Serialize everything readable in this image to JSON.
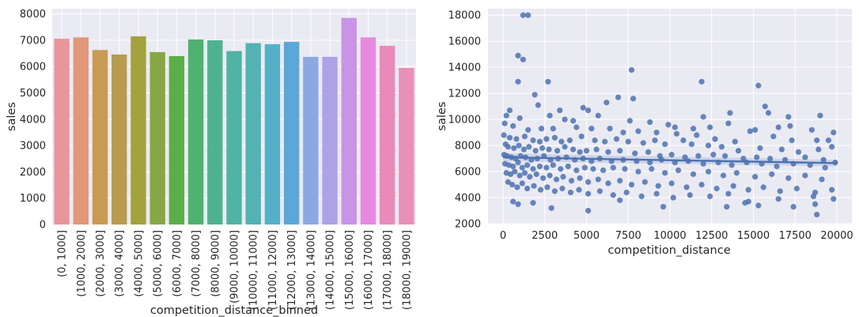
{
  "chart_data": [
    {
      "type": "bar",
      "xlabel": "competition_distance_binned",
      "ylabel": "sales",
      "ylim": [
        0,
        8200
      ],
      "yticks": [
        0,
        1000,
        2000,
        3000,
        4000,
        5000,
        6000,
        7000,
        8000
      ],
      "grid": true,
      "categories": [
        "(0, 1000]",
        "(1000, 2000]",
        "(2000, 3000]",
        "(3000, 4000]",
        "(4000, 5000]",
        "(5000, 6000]",
        "(6000, 7000]",
        "(7000, 8000]",
        "(8000, 9000]",
        "(9000, 10000]",
        "(10000, 11000]",
        "(11000, 12000]",
        "(12000, 13000]",
        "(13000, 14000]",
        "(14000, 15000]",
        "(15000, 16000]",
        "(16000, 17000]",
        "(17000, 18000]",
        "(18000, 19000]"
      ],
      "values": [
        7060,
        7110,
        6630,
        6460,
        7150,
        6550,
        6400,
        7030,
        7000,
        6590,
        6890,
        6850,
        6940,
        6370,
        6370,
        7850,
        7110,
        6790,
        5950
      ],
      "colors": [
        "#e8959b",
        "#e0987a",
        "#c99a54",
        "#b79c4e",
        "#a2a23f",
        "#87a745",
        "#5cae4a",
        "#4eb270",
        "#4fb28e",
        "#50b3a3",
        "#52b2b4",
        "#55b0c7",
        "#5ba8d8",
        "#8ca8e3",
        "#afa1e8",
        "#c993e6",
        "#e68ae0",
        "#e98ab9",
        "#e890b8"
      ]
    },
    {
      "type": "scatter",
      "xlabel": "competition_distance",
      "ylabel": "sales",
      "xlim": [
        -900,
        20900
      ],
      "ylim": [
        2000,
        18500
      ],
      "xticks": [
        0,
        2500,
        5000,
        7500,
        10000,
        12500,
        15000,
        17500,
        20000
      ],
      "yticks": [
        2000,
        4000,
        6000,
        8000,
        10000,
        12000,
        14000,
        16000,
        18000
      ],
      "grid": true,
      "regression": {
        "x": [
          0,
          20000
        ],
        "y": [
          7100,
          6650
        ]
      },
      "color": "#4c72b0",
      "points": [
        [
          1200,
          18000
        ],
        [
          1500,
          18000
        ],
        [
          900,
          14900
        ],
        [
          1200,
          14600
        ],
        [
          900,
          12900
        ],
        [
          2700,
          12900
        ],
        [
          7700,
          13800
        ],
        [
          11900,
          12900
        ],
        [
          15300,
          12600
        ],
        [
          15700,
          11000
        ],
        [
          6900,
          11700
        ],
        [
          6200,
          11300
        ],
        [
          7800,
          11600
        ],
        [
          2100,
          11100
        ],
        [
          1900,
          11900
        ],
        [
          4800,
          10900
        ],
        [
          5100,
          10700
        ],
        [
          3400,
          10700
        ],
        [
          400,
          10700
        ],
        [
          13600,
          10500
        ],
        [
          12000,
          10200
        ],
        [
          15900,
          10500
        ],
        [
          19000,
          10300
        ],
        [
          17100,
          10200
        ],
        [
          200,
          10300
        ],
        [
          1000,
          10100
        ],
        [
          2800,
          10300
        ],
        [
          3700,
          10000
        ],
        [
          4200,
          9900
        ],
        [
          5700,
          10300
        ],
        [
          7600,
          9900
        ],
        [
          8800,
          9800
        ],
        [
          9900,
          9600
        ],
        [
          10300,
          9400
        ],
        [
          11400,
          9300
        ],
        [
          12400,
          9400
        ],
        [
          13500,
          9700
        ],
        [
          14800,
          9100
        ],
        [
          15100,
          9200
        ],
        [
          16500,
          9400
        ],
        [
          17200,
          9500
        ],
        [
          18500,
          9200
        ],
        [
          19800,
          9000
        ],
        [
          100,
          9700
        ],
        [
          600,
          9500
        ],
        [
          1500,
          9200
        ],
        [
          2300,
          9300
        ],
        [
          3000,
          9300
        ],
        [
          4400,
          9400
        ],
        [
          5300,
          9300
        ],
        [
          6400,
          9300
        ],
        [
          7200,
          9000
        ],
        [
          8100,
          9100
        ],
        [
          9200,
          9000
        ],
        [
          10400,
          8900
        ],
        [
          11600,
          8800
        ],
        [
          12700,
          8500
        ],
        [
          13900,
          8300
        ],
        [
          16200,
          8700
        ],
        [
          17300,
          8400
        ],
        [
          18800,
          8400
        ],
        [
          19500,
          8400
        ],
        [
          50,
          8800
        ],
        [
          400,
          8600
        ],
        [
          800,
          8500
        ],
        [
          1300,
          8700
        ],
        [
          1800,
          8400
        ],
        [
          2200,
          8300
        ],
        [
          2600,
          8500
        ],
        [
          3100,
          8600
        ],
        [
          3500,
          8300
        ],
        [
          4000,
          8400
        ],
        [
          4700,
          8700
        ],
        [
          5500,
          8400
        ],
        [
          6100,
          8300
        ],
        [
          6800,
          8500
        ],
        [
          7500,
          8300
        ],
        [
          8400,
          8200
        ],
        [
          9100,
          8400
        ],
        [
          9700,
          8100
        ],
        [
          10800,
          8400
        ],
        [
          11300,
          8100
        ],
        [
          12300,
          8000
        ],
        [
          13100,
          7900
        ],
        [
          14100,
          7600
        ],
        [
          15400,
          7800
        ],
        [
          16700,
          7700
        ],
        [
          17700,
          7500
        ],
        [
          18900,
          7700
        ],
        [
          19700,
          7900
        ],
        [
          150,
          8100
        ],
        [
          300,
          7900
        ],
        [
          650,
          7800
        ],
        [
          950,
          8000
        ],
        [
          1250,
          7700
        ],
        [
          1550,
          7900
        ],
        [
          1950,
          7600
        ],
        [
          2350,
          7800
        ],
        [
          2750,
          7700
        ],
        [
          3250,
          7600
        ],
        [
          3700,
          7900
        ],
        [
          4200,
          7700
        ],
        [
          4600,
          7500
        ],
        [
          5000,
          7600
        ],
        [
          5600,
          7700
        ],
        [
          6300,
          7500
        ],
        [
          7000,
          7600
        ],
        [
          7900,
          7400
        ],
        [
          8700,
          7500
        ],
        [
          9400,
          7200
        ],
        [
          10100,
          7300
        ],
        [
          10900,
          7100
        ],
        [
          11700,
          7200
        ],
        [
          12600,
          7300
        ],
        [
          13300,
          7200
        ],
        [
          14400,
          7000
        ],
        [
          15200,
          7100
        ],
        [
          16000,
          7000
        ],
        [
          16900,
          6900
        ],
        [
          18100,
          7100
        ],
        [
          19200,
          6900
        ],
        [
          19900,
          6700
        ],
        [
          60,
          7300
        ],
        [
          250,
          7200
        ],
        [
          500,
          7100
        ],
        [
          750,
          7000
        ],
        [
          1050,
          7200
        ],
        [
          1350,
          7100
        ],
        [
          1700,
          6900
        ],
        [
          2050,
          7000
        ],
        [
          2450,
          7200
        ],
        [
          2850,
          6900
        ],
        [
          3300,
          7000
        ],
        [
          3800,
          7100
        ],
        [
          4300,
          6900
        ],
        [
          4800,
          7000
        ],
        [
          5300,
          6800
        ],
        [
          5800,
          7000
        ],
        [
          6500,
          6800
        ],
        [
          7200,
          6900
        ],
        [
          8000,
          6800
        ],
        [
          8800,
          6700
        ],
        [
          9500,
          6900
        ],
        [
          10300,
          6700
        ],
        [
          11100,
          6800
        ],
        [
          12000,
          6600
        ],
        [
          12900,
          6700
        ],
        [
          13700,
          6500
        ],
        [
          14600,
          6700
        ],
        [
          15500,
          6600
        ],
        [
          16400,
          6400
        ],
        [
          17400,
          6600
        ],
        [
          18400,
          6500
        ],
        [
          19300,
          6300
        ],
        [
          120,
          6600
        ],
        [
          350,
          6500
        ],
        [
          600,
          6400
        ],
        [
          900,
          6700
        ],
        [
          1150,
          6300
        ],
        [
          1450,
          6500
        ],
        [
          1800,
          6200
        ],
        [
          2200,
          6400
        ],
        [
          2600,
          6300
        ],
        [
          3000,
          6500
        ],
        [
          3450,
          6200
        ],
        [
          3900,
          6400
        ],
        [
          4400,
          6100
        ],
        [
          4900,
          6300
        ],
        [
          5400,
          6200
        ],
        [
          6000,
          6100
        ],
        [
          6600,
          6300
        ],
        [
          7300,
          6200
        ],
        [
          8100,
          6000
        ],
        [
          8900,
          6200
        ],
        [
          9700,
          5900
        ],
        [
          10500,
          6100
        ],
        [
          11400,
          5800
        ],
        [
          12300,
          6000
        ],
        [
          13200,
          5700
        ],
        [
          14000,
          5900
        ],
        [
          15100,
          5600
        ],
        [
          16100,
          5800
        ],
        [
          17100,
          5500
        ],
        [
          18100,
          5700
        ],
        [
          19100,
          5400
        ],
        [
          200,
          5900
        ],
        [
          450,
          5800
        ],
        [
          700,
          6000
        ],
        [
          1000,
          5700
        ],
        [
          1300,
          5900
        ],
        [
          1600,
          5600
        ],
        [
          2000,
          5800
        ],
        [
          2400,
          5500
        ],
        [
          2800,
          5700
        ],
        [
          3200,
          5400
        ],
        [
          3600,
          5600
        ],
        [
          4100,
          5300
        ],
        [
          4600,
          5500
        ],
        [
          5100,
          5200
        ],
        [
          5700,
          5400
        ],
        [
          6300,
          5100
        ],
        [
          7000,
          5300
        ],
        [
          7700,
          5000
        ],
        [
          8500,
          5200
        ],
        [
          9300,
          4900
        ],
        [
          10100,
          5100
        ],
        [
          11000,
          4800
        ],
        [
          11900,
          5000
        ],
        [
          12800,
          4700
        ],
        [
          13800,
          4900
        ],
        [
          14700,
          4600
        ],
        [
          15600,
          4800
        ],
        [
          16600,
          4500
        ],
        [
          17600,
          4700
        ],
        [
          18700,
          4400
        ],
        [
          19700,
          4600
        ],
        [
          300,
          5200
        ],
        [
          550,
          5000
        ],
        [
          850,
          4800
        ],
        [
          1150,
          5100
        ],
        [
          1450,
          4700
        ],
        [
          1850,
          4900
        ],
        [
          2250,
          4600
        ],
        [
          2650,
          4800
        ],
        [
          3100,
          4500
        ],
        [
          3550,
          4700
        ],
        [
          4050,
          4400
        ],
        [
          4550,
          4600
        ],
        [
          5100,
          4300
        ],
        [
          5800,
          4500
        ],
        [
          6600,
          4200
        ],
        [
          7400,
          4400
        ],
        [
          8300,
          4100
        ],
        [
          9200,
          4300
        ],
        [
          10200,
          4000
        ],
        [
          11200,
          4200
        ],
        [
          12400,
          4100
        ],
        [
          13500,
          4300
        ],
        [
          14700,
          3700
        ],
        [
          15300,
          3400
        ],
        [
          16500,
          3900
        ],
        [
          17400,
          3300
        ],
        [
          18600,
          4100
        ],
        [
          18700,
          3500
        ],
        [
          18800,
          2700
        ],
        [
          19800,
          3900
        ],
        [
          600,
          3700
        ],
        [
          900,
          3500
        ],
        [
          1800,
          3600
        ],
        [
          2900,
          3200
        ],
        [
          5100,
          3000
        ],
        [
          7000,
          3800
        ],
        [
          9600,
          3300
        ],
        [
          13400,
          3300
        ],
        [
          14500,
          3600
        ]
      ]
    }
  ]
}
